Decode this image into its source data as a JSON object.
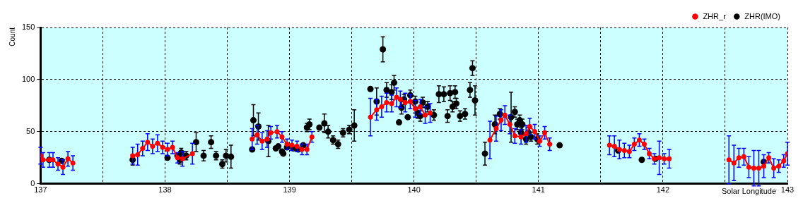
{
  "chart_data": {
    "type": "scatter",
    "xlabel": "Solar Longitude",
    "ylabel": "Count",
    "xlim": [
      137,
      143
    ],
    "xticks": [
      137,
      {
        "value": 137.5,
        "label": null
      },
      138,
      {
        "value": 138.5,
        "label": null
      },
      139,
      {
        "value": 139.5,
        "label": null
      },
      140,
      {
        "value": 140.5,
        "label": null
      },
      141,
      {
        "value": 141.5,
        "label": null
      },
      142,
      {
        "value": 142.5,
        "label": null
      },
      143
    ],
    "ylim": [
      0,
      150
    ],
    "yticks": [
      0,
      50,
      100,
      150
    ],
    "grid": true,
    "legend": "top right",
    "series": [
      {
        "name": "ZHR_r",
        "type": "line",
        "color": "#ff0000",
        "marker": "circle",
        "line_style": "solid",
        "x": [
          137.0,
          137.02,
          137.07,
          137.1,
          137.14,
          137.18,
          137.22,
          137.26,
          null,
          137.74,
          137.78,
          137.82,
          137.86,
          137.9,
          137.94,
          137.98,
          138.02,
          138.06,
          138.1,
          138.14,
          138.22,
          null,
          138.7,
          138.74,
          138.78,
          138.82,
          138.85,
          138.9,
          138.94,
          138.98,
          139.02,
          139.06,
          139.1,
          139.14,
          139.18,
          null,
          139.65,
          139.7,
          139.74,
          139.78,
          139.82,
          139.86,
          139.89,
          139.93,
          139.97,
          140.01,
          140.05,
          140.09,
          140.13,
          null,
          140.61,
          140.66,
          140.7,
          140.73,
          140.77,
          140.81,
          140.86,
          140.9,
          140.93,
          140.97,
          141.01,
          141.05,
          141.09,
          null,
          141.57,
          141.61,
          141.65,
          141.69,
          141.73,
          141.77,
          141.81,
          141.85,
          141.89,
          141.93,
          141.97,
          142.01,
          142.05,
          null,
          142.53,
          142.57,
          142.61,
          142.65,
          142.69,
          142.73,
          142.77,
          142.81,
          142.85,
          142.89,
          142.93,
          142.97,
          143.0
        ],
        "values": [
          27,
          23,
          23,
          23,
          19,
          16,
          24,
          20,
          null,
          27,
          28,
          34,
          40,
          36,
          39,
          35,
          33,
          35,
          25,
          24,
          29,
          null,
          43,
          47,
          41,
          43,
          49,
          50,
          45,
          38,
          37,
          36,
          33,
          33,
          45,
          null,
          64,
          71,
          74,
          78,
          77,
          83,
          81,
          78,
          79,
          72,
          74,
          66,
          68,
          null,
          42,
          53,
          61,
          66,
          57,
          46,
          45,
          48,
          55,
          50,
          41,
          49,
          38,
          null,
          37,
          36,
          33,
          32,
          31,
          38,
          42,
          38,
          29,
          24,
          25,
          24,
          24,
          null,
          23,
          20,
          25,
          26,
          16,
          15,
          15,
          17,
          25,
          15,
          17,
          22,
          29
        ],
        "errors": [
          8,
          7,
          7,
          7,
          6,
          7,
          7,
          7,
          null,
          8,
          10,
          7,
          8,
          7,
          8,
          6,
          6,
          6,
          5,
          7,
          10,
          null,
          10,
          9,
          8,
          8,
          6,
          6,
          5,
          5,
          5,
          5,
          5,
          5,
          5,
          null,
          18,
          10,
          10,
          9,
          8,
          9,
          8,
          9,
          7,
          8,
          7,
          8,
          9,
          null,
          18,
          12,
          10,
          9,
          9,
          7,
          7,
          8,
          8,
          7,
          5,
          6,
          6,
          null,
          9,
          10,
          9,
          7,
          6,
          6,
          6,
          5,
          5,
          5,
          16,
          5,
          9,
          null,
          23,
          17,
          9,
          8,
          10,
          17,
          17,
          11,
          5,
          9,
          6,
          6,
          11
        ]
      },
      {
        "name": "ZHR(IMO)",
        "color": "#000000",
        "marker": "circle",
        "x": [
          137.07,
          137.17,
          137.74,
          138.02,
          138.1,
          138.12,
          138.13,
          138.17,
          138.25,
          138.31,
          138.37,
          138.41,
          138.46,
          138.49,
          138.53,
          138.7,
          138.71,
          138.75,
          138.83,
          138.89,
          138.91,
          138.94,
          138.95,
          138.98,
          139.03,
          139.07,
          139.11,
          139.14,
          139.16,
          139.24,
          139.28,
          139.31,
          139.35,
          139.39,
          139.43,
          139.48,
          139.52,
          139.65,
          139.7,
          139.75,
          139.78,
          139.82,
          139.84,
          139.88,
          139.9,
          139.92,
          139.95,
          139.97,
          140.01,
          140.03,
          140.05,
          140.07,
          140.11,
          140.16,
          140.2,
          140.24,
          140.27,
          140.29,
          140.31,
          140.33,
          140.34,
          140.37,
          140.41,
          140.45,
          140.47,
          140.49,
          140.57,
          140.65,
          140.69,
          140.78,
          140.81,
          140.83,
          140.85,
          140.86,
          140.87,
          140.9,
          140.92,
          140.94,
          140.99,
          141.17,
          141.64,
          141.83,
          141.94,
          142.81
        ],
        "values": [
          23,
          22,
          23,
          25,
          27,
          23,
          30,
          27,
          40,
          27,
          40,
          27,
          19,
          27,
          26,
          33,
          61,
          55,
          41,
          34,
          36,
          31,
          29,
          35,
          34,
          33,
          37,
          54,
          57,
          54,
          58,
          50,
          42,
          38,
          49,
          52,
          56,
          91,
          79,
          129,
          90,
          88,
          97,
          59,
          73,
          81,
          64,
          85,
          79,
          68,
          65,
          78,
          74,
          66,
          86,
          86,
          65,
          87,
          74,
          88,
          77,
          65,
          67,
          90,
          111,
          80,
          29,
          57,
          67,
          64,
          69,
          57,
          61,
          49,
          57,
          43,
          49,
          45,
          43,
          37,
          32,
          23,
          24,
          21
        ],
        "errors": [
          null,
          null,
          5,
          null,
          null,
          4,
          4,
          4,
          9,
          5,
          6,
          4,
          4,
          6,
          11,
          null,
          15,
          13,
          15,
          null,
          null,
          null,
          null,
          null,
          null,
          null,
          null,
          4,
          5,
          null,
          9,
          6,
          4,
          4,
          4,
          4,
          15,
          null,
          13,
          12,
          7,
          7,
          7,
          null,
          6,
          5,
          null,
          5,
          5,
          5,
          5,
          5,
          5,
          5,
          8,
          7,
          6,
          7,
          5,
          6,
          5,
          5,
          5,
          7,
          7,
          14,
          11,
          9,
          5,
          24,
          5,
          5,
          5,
          5,
          5,
          5,
          5,
          4,
          5,
          null,
          null,
          null,
          null,
          null
        ]
      }
    ]
  }
}
